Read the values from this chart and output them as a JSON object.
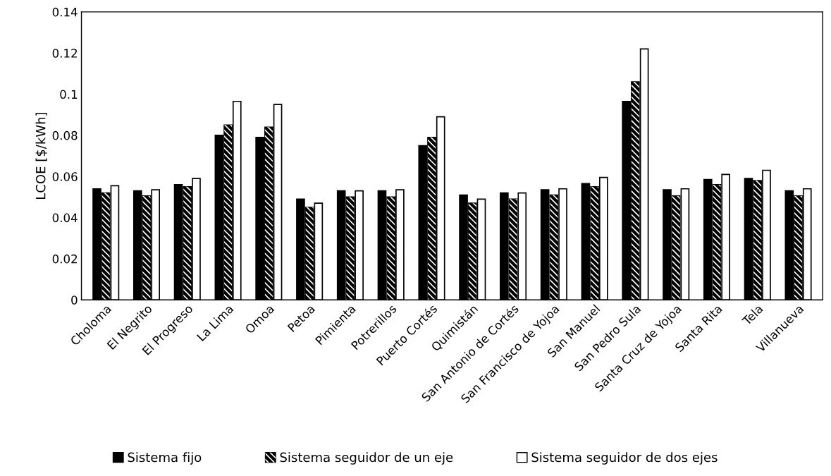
{
  "chart_data": {
    "type": "bar",
    "ylabel": "LCOE [$/kWh]",
    "categories": [
      "Choloma",
      "El Negrito",
      "El Progreso",
      "La Lima",
      "Omoa",
      "Petoa",
      "Pimienta",
      "Potrerillos",
      "Puerto Cortés",
      "Quimistán",
      "San Antonio de Cortés",
      "San Francisco de Yojoa",
      "San Manuel",
      "San Pedro Sula",
      "Santa Cruz de Yojoa",
      "Santa Rita",
      "Tela",
      "Villanueva"
    ],
    "series": [
      {
        "name": "Sistema fijo",
        "color": "#000000",
        "values": [
          0.054,
          0.053,
          0.056,
          0.08,
          0.079,
          0.049,
          0.053,
          0.053,
          0.075,
          0.051,
          0.052,
          0.0535,
          0.0565,
          0.0965,
          0.0535,
          0.0585,
          0.059,
          0.053
        ]
      },
      {
        "name": "Sistema seguidor de un eje",
        "color": "#000000",
        "values": [
          0.052,
          0.0505,
          0.055,
          0.085,
          0.084,
          0.045,
          0.05,
          0.05,
          0.079,
          0.047,
          0.049,
          0.051,
          0.055,
          0.106,
          0.0505,
          0.056,
          0.058,
          0.0505
        ]
      },
      {
        "name": "Sistema seguidor de dos ejes",
        "color": "#ffffff",
        "values": [
          0.0555,
          0.0535,
          0.059,
          0.0965,
          0.095,
          0.047,
          0.053,
          0.0535,
          0.089,
          0.049,
          0.052,
          0.054,
          0.0595,
          0.122,
          0.054,
          0.061,
          0.063,
          0.054
        ]
      }
    ],
    "ylim": [
      0,
      0.14
    ],
    "yticks": [
      0,
      0.02,
      0.04,
      0.06,
      0.08,
      0.1,
      0.12,
      0.14
    ],
    "grid": false,
    "legend": "bottom"
  }
}
